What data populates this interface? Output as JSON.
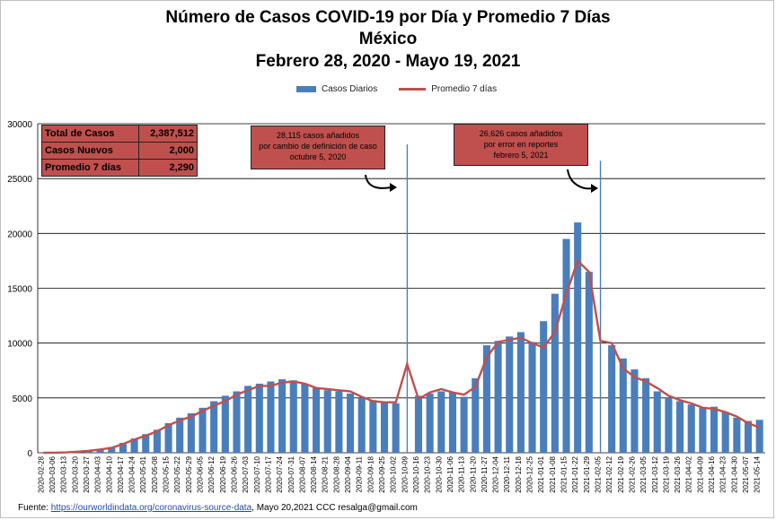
{
  "header": {
    "title_line1": "Número de  Casos  COVID-19 por Día y Promedio 7 Días",
    "title_line2": "México",
    "title_line3": "Febrero 28, 2020 - Mayo 19, 2021"
  },
  "legend": {
    "bars_label": "Casos Diarios",
    "line_label": "Promedio 7 días"
  },
  "stats": [
    {
      "label": "Total de Casos",
      "value": "2,387,512"
    },
    {
      "label": "Casos Nuevos",
      "value": "2,000"
    },
    {
      "label": "Promedio 7 días",
      "value": "2,290"
    }
  ],
  "annotations": [
    {
      "lines": [
        "28,115 casos  añadidos",
        "por cambio de definición  de caso",
        "octubre  5, 2020"
      ]
    },
    {
      "lines": [
        "26,626 casos  añadidos",
        "por error en reportes",
        "febrero  5, 2021"
      ]
    }
  ],
  "footer": {
    "prefix": "Fuente:",
    "link_text": "https://ourworldindata.org/coronavirus-source-data",
    "suffix": ", Mayo 20,2021    CCC   resalga@gmail.com"
  },
  "colors": {
    "bars": "#4a7ebb",
    "line": "#c0504d",
    "stat_fill": "#c0504d",
    "grid": "#000000"
  },
  "chart_data": {
    "type": "bar",
    "title": "Número de  Casos  COVID-19 por Día y Promedio 7 Días",
    "subtitle": "México  Febrero 28, 2020 - Mayo 19, 2021",
    "ylim": [
      0,
      30000
    ],
    "yticks": [
      0,
      5000,
      10000,
      15000,
      20000,
      25000,
      30000
    ],
    "grid": true,
    "legend_position": "top-center",
    "categories": [
      "2020-02-28",
      "2020-03-06",
      "2020-03-13",
      "2020-03-20",
      "2020-03-27",
      "2020-04-03",
      "2020-04-10",
      "2020-04-17",
      "2020-04-24",
      "2020-05-01",
      "2020-05-08",
      "2020-05-15",
      "2020-05-22",
      "2020-05-29",
      "2020-06-05",
      "2020-06-12",
      "2020-06-19",
      "2020-06-26",
      "2020-07-03",
      "2020-07-10",
      "2020-07-17",
      "2020-07-24",
      "2020-07-31",
      "2020-08-07",
      "2020-08-14",
      "2020-08-21",
      "2020-08-28",
      "2020-09-04",
      "2020-09-11",
      "2020-09-18",
      "2020-09-25",
      "2020-10-02",
      "2020-10-09",
      "2020-10-16",
      "2020-10-23",
      "2020-10-30",
      "2020-11-06",
      "2020-11-13",
      "2020-11-20",
      "2020-11-27",
      "2020-12-04",
      "2020-12-11",
      "2020-12-18",
      "2020-12-25",
      "2021-01-01",
      "2021-01-08",
      "2021-01-15",
      "2021-01-22",
      "2021-01-29",
      "2021-02-05",
      "2021-02-12",
      "2021-02-19",
      "2021-02-26",
      "2021-03-05",
      "2021-03-12",
      "2021-03-19",
      "2021-03-26",
      "2021-04-02",
      "2021-04-09",
      "2021-04-16",
      "2021-04-23",
      "2021-04-30",
      "2021-05-07",
      "2021-05-14"
    ],
    "series": [
      {
        "name": "Casos Diarios",
        "kind": "bar",
        "values": [
          5,
          10,
          40,
          120,
          200,
          350,
          500,
          900,
          1300,
          1700,
          2100,
          2700,
          3200,
          3600,
          4100,
          4700,
          5200,
          5600,
          6100,
          6300,
          6500,
          6700,
          6600,
          6300,
          5900,
          5700,
          5600,
          5400,
          5000,
          4800,
          4600,
          4500,
          28115,
          5200,
          5400,
          5600,
          5500,
          5100,
          6800,
          9800,
          10200,
          10600,
          11000,
          10100,
          12000,
          14500,
          19500,
          21000,
          16500,
          26626,
          9800,
          8600,
          7600,
          6800,
          5600,
          5000,
          4700,
          4400,
          4100,
          4200,
          3700,
          3200,
          2900,
          3000
        ]
      },
      {
        "name": "Promedio 7 días",
        "kind": "line",
        "values": [
          3,
          8,
          30,
          100,
          180,
          300,
          450,
          800,
          1200,
          1550,
          1950,
          2500,
          2950,
          3300,
          3800,
          4300,
          4700,
          5300,
          5700,
          6100,
          6100,
          6400,
          6500,
          6300,
          5900,
          5800,
          5700,
          5600,
          5100,
          4700,
          4600,
          4600,
          8100,
          4900,
          5500,
          5800,
          5500,
          5300,
          6000,
          8700,
          10100,
          10300,
          10500,
          10000,
          9600,
          11000,
          14500,
          17500,
          16500,
          10200,
          10000,
          7700,
          6900,
          6500,
          5900,
          5200,
          4800,
          4500,
          4100,
          4000,
          3700,
          3300,
          2700,
          2300
        ]
      }
    ]
  }
}
